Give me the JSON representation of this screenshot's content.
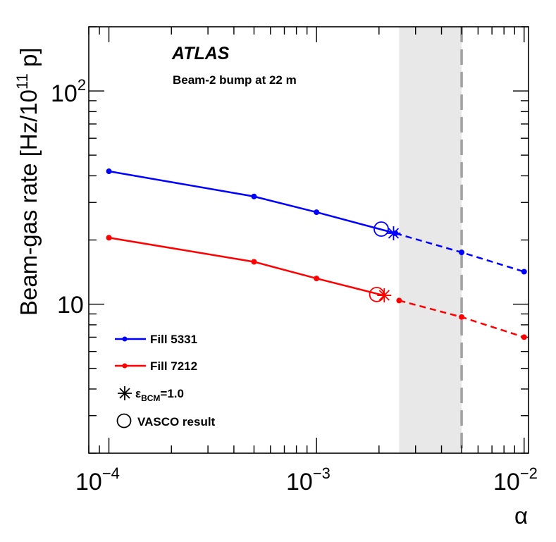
{
  "chart_data": {
    "type": "line",
    "title": "ATLAS",
    "subtitle": "Beam-2 bump at 22 m",
    "xlabel": "α",
    "ylabel": {
      "main": "Beam-gas rate [Hz/10",
      "sup": "11",
      "tail": " p]"
    },
    "xscale": "log",
    "yscale": "log",
    "xlim": [
      8e-05,
      0.0105
    ],
    "ylim": [
      2.0,
      200.0
    ],
    "xticks": [
      {
        "value": 0.0001,
        "base": "10",
        "exp": "−4"
      },
      {
        "value": 0.001,
        "base": "10",
        "exp": "−3"
      },
      {
        "value": 0.01,
        "base": "10",
        "exp": "−2"
      }
    ],
    "yticks": [
      {
        "value": 10,
        "label": "10"
      },
      {
        "value": 100,
        "base": "10",
        "exp": "2"
      }
    ],
    "shaded_band": {
      "x": [
        0.0025,
        0.005
      ]
    },
    "vertical_line": {
      "x": 0.005,
      "style": "dashed"
    },
    "series": [
      {
        "name": "Fill 5331",
        "color": "#0000ff",
        "solid": {
          "x": [
            0.0001,
            0.0005,
            0.001,
            0.0024
          ],
          "y": [
            42,
            32,
            27,
            21.5
          ]
        },
        "dashed": {
          "x": [
            0.0024,
            0.005,
            0.01
          ],
          "y": [
            21.5,
            17.5,
            14.2
          ]
        },
        "markers": {
          "x": [
            0.0001,
            0.0005,
            0.001,
            0.0024,
            0.005,
            0.01
          ],
          "y": [
            42,
            32,
            27,
            21.5,
            17.5,
            14.2
          ]
        },
        "bcm_point": {
          "x": 0.00235,
          "y": 21.5
        },
        "vasco_point": {
          "x": 0.00205,
          "y": 22.5
        }
      },
      {
        "name": "Fill 7212",
        "color": "#ff0000",
        "solid": {
          "x": [
            0.0001,
            0.0005,
            0.001,
            0.0021
          ],
          "y": [
            20.5,
            15.8,
            13.2,
            11.0
          ]
        },
        "dashed": {
          "x": [
            0.0025,
            0.005,
            0.01
          ],
          "y": [
            10.4,
            8.7,
            7.0
          ]
        },
        "markers": {
          "x": [
            0.0001,
            0.0005,
            0.001,
            0.0025,
            0.005,
            0.01
          ],
          "y": [
            20.5,
            15.8,
            13.2,
            10.4,
            8.7,
            7.0
          ]
        },
        "bcm_point": {
          "x": 0.00212,
          "y": 11.0
        },
        "vasco_point": {
          "x": 0.00195,
          "y": 11.1
        }
      }
    ],
    "legend": {
      "placement": "bottom-left",
      "entries": [
        {
          "label": "Fill 5331",
          "kind": "line",
          "color": "#0000ff"
        },
        {
          "label": "Fill 7212",
          "kind": "line",
          "color": "#ff0000"
        },
        {
          "label": "ε",
          "sub": "BCM",
          "suffix": "=1.0",
          "kind": "star",
          "color": "#000000"
        },
        {
          "label": "VASCO result",
          "kind": "circle",
          "color": "#000000"
        }
      ]
    }
  }
}
